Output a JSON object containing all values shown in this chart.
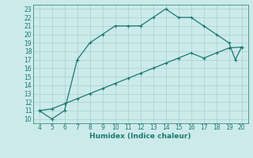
{
  "xlabel": "Humidex (Indice chaleur)",
  "bg_color": "#cceaea",
  "grid_color": "#aad4d4",
  "line_color": "#1a7a6e",
  "curve1_x": [
    4,
    5,
    6,
    7,
    8,
    9,
    10,
    11,
    12,
    13,
    14,
    15,
    16,
    17,
    18,
    19,
    19.5,
    20
  ],
  "curve1_y": [
    11,
    10,
    11,
    17,
    19,
    20,
    21,
    21,
    21,
    22,
    23,
    22,
    22,
    21,
    20,
    19,
    17,
    18.5
  ],
  "curve2_x": [
    4,
    5,
    6,
    7,
    8,
    9,
    10,
    11,
    12,
    13,
    14,
    15,
    16,
    17,
    18,
    19,
    20
  ],
  "curve2_y": [
    11,
    11.2,
    11.8,
    12.4,
    13.0,
    13.6,
    14.2,
    14.8,
    15.4,
    16.0,
    16.6,
    17.2,
    17.8,
    17.2,
    17.8,
    18.4,
    18.5
  ],
  "xlim": [
    3.5,
    20.5
  ],
  "ylim": [
    9.5,
    23.5
  ],
  "xticks": [
    4,
    5,
    6,
    7,
    8,
    9,
    10,
    11,
    12,
    13,
    14,
    15,
    16,
    17,
    18,
    19,
    20
  ],
  "yticks": [
    10,
    11,
    12,
    13,
    14,
    15,
    16,
    17,
    18,
    19,
    20,
    21,
    22,
    23
  ],
  "figsize": [
    3.2,
    2.0
  ],
  "dpi": 100
}
